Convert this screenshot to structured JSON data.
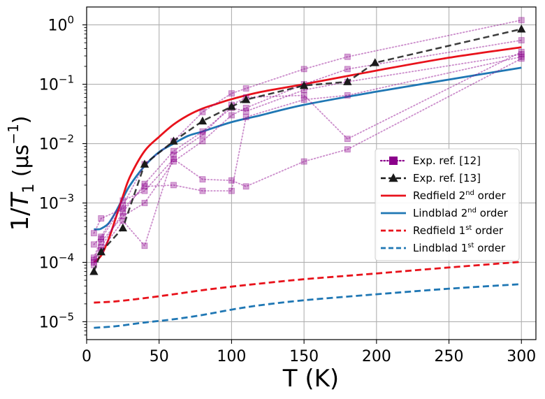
{
  "chart_data": {
    "type": "line",
    "title": "",
    "xlabel": "T (K)",
    "ylabel": "1/T1 (μs⁻¹)",
    "ylabel_parts": {
      "prefix": "1/",
      "main": "T",
      "sub": "1",
      "unit_open": " (μs",
      "unit_sup": "−1",
      "unit_close": ")"
    },
    "xscale": "linear",
    "yscale": "log",
    "xlim": [
      0,
      310
    ],
    "ylim": [
      5e-06,
      2.0
    ],
    "grid": true,
    "legend_position": "center-right",
    "xticks": [
      {
        "value": 0,
        "label": "0"
      },
      {
        "value": 50,
        "label": "50"
      },
      {
        "value": 100,
        "label": "100"
      },
      {
        "value": 150,
        "label": "150"
      },
      {
        "value": 200,
        "label": "200"
      },
      {
        "value": 250,
        "label": "250"
      },
      {
        "value": 300,
        "label": "300"
      }
    ],
    "yticks": [
      {
        "value": 1e-05,
        "base": "10",
        "exp": "−5"
      },
      {
        "value": 0.0001,
        "base": "10",
        "exp": "−4"
      },
      {
        "value": 0.001,
        "base": "10",
        "exp": "−3"
      },
      {
        "value": 0.01,
        "base": "10",
        "exp": "−2"
      },
      {
        "value": 0.1,
        "base": "10",
        "exp": "−1"
      },
      {
        "value": 1,
        "base": "10",
        "exp": "0"
      }
    ],
    "colors": {
      "exp12": "#8b008b",
      "exp13": "#1a1a1a",
      "redfield": "#e8121b",
      "lindblad": "#1f77b4",
      "grid": "#b0b0b0"
    },
    "legend": [
      {
        "series": "exp12",
        "label": "Exp. ref. [12]"
      },
      {
        "series": "exp13",
        "label": "Exp. ref. [13]"
      },
      {
        "series": "red2",
        "label": "Redfield 2nd order",
        "label_main": "Redfield 2",
        "label_sup": "nd",
        "label_tail": " order"
      },
      {
        "series": "lin2",
        "label": "Lindblad 2nd order",
        "label_main": "Lindblad 2",
        "label_sup": "nd",
        "label_tail": " order"
      },
      {
        "series": "red1",
        "label": "Redfield 1st order",
        "label_main": "Redfield 1",
        "label_sup": "st",
        "label_tail": " order"
      },
      {
        "series": "lin1",
        "label": "Lindblad 1st order",
        "label_main": "Lindblad 1",
        "label_sup": "st",
        "label_tail": " order"
      }
    ],
    "exp12_series": [
      {
        "name": "exp12-a",
        "x": [
          5,
          10,
          25,
          40,
          60,
          80,
          100,
          110,
          150,
          180,
          300
        ],
        "y": [
          0.0001,
          0.00018,
          0.0007,
          0.0021,
          0.0075,
          0.016,
          0.04,
          0.035,
          0.08,
          0.11,
          0.32
        ]
      },
      {
        "name": "exp12-b",
        "x": [
          5,
          10,
          25,
          40,
          60,
          80,
          100,
          110,
          150,
          180,
          300
        ],
        "y": [
          0.00012,
          0.00025,
          0.0009,
          0.0045,
          0.011,
          0.034,
          0.07,
          0.085,
          0.18,
          0.29,
          1.2
        ]
      },
      {
        "name": "exp12-c",
        "x": [
          5,
          10,
          25,
          40,
          60,
          80,
          100,
          110,
          150,
          180,
          300
        ],
        "y": [
          0.0002,
          0.00027,
          0.0011,
          0.0016,
          0.0055,
          0.0025,
          0.0024,
          0.0019,
          0.005,
          0.008,
          0.27
        ]
      },
      {
        "name": "exp12-d",
        "x": [
          5,
          10,
          25,
          40,
          60,
          80,
          100,
          110,
          150,
          180,
          300
        ],
        "y": [
          0.00031,
          0.00055,
          0.0008,
          0.0019,
          0.002,
          0.0016,
          0.0016,
          0.028,
          0.055,
          0.065,
          0.29
        ]
      },
      {
        "name": "exp12-e",
        "x": [
          5,
          10,
          25,
          40,
          60,
          80,
          100,
          110,
          150,
          180,
          300
        ],
        "y": [
          0.00011,
          0.00022,
          0.0006,
          0.001,
          0.005,
          0.011,
          0.03,
          0.04,
          0.1,
          0.18,
          0.55
        ]
      },
      {
        "name": "exp12-f",
        "x": [
          5,
          10,
          25,
          40,
          60,
          80,
          100,
          110,
          150,
          180,
          300
        ],
        "y": [
          9e-05,
          0.00016,
          0.0005,
          0.00019,
          0.0065,
          0.014,
          0.045,
          0.06,
          0.065,
          0.012,
          0.35
        ]
      }
    ],
    "exp13": {
      "name": "Exp. ref. [13]",
      "x": [
        5,
        10,
        25,
        40,
        60,
        80,
        100,
        110,
        150,
        180,
        199,
        300
      ],
      "y": [
        7e-05,
        0.00015,
        0.00038,
        0.0045,
        0.011,
        0.024,
        0.042,
        0.055,
        0.095,
        0.11,
        0.23,
        0.85
      ]
    },
    "red2": {
      "name": "Redfield 2nd order",
      "x": [
        5,
        10,
        15,
        20,
        25,
        30,
        40,
        50,
        60,
        70,
        80,
        90,
        100,
        120,
        150,
        200,
        250,
        300
      ],
      "y": [
        0.0001,
        0.00013,
        0.00024,
        0.00055,
        0.0013,
        0.0028,
        0.0075,
        0.013,
        0.021,
        0.03,
        0.039,
        0.047,
        0.056,
        0.074,
        0.1,
        0.17,
        0.28,
        0.42
      ]
    },
    "lin2": {
      "name": "Lindblad 2nd order",
      "x": [
        5,
        8,
        10,
        15,
        20,
        25,
        30,
        40,
        50,
        60,
        70,
        80,
        100,
        120,
        150,
        200,
        250,
        300
      ],
      "y": [
        0.00036,
        0.00036,
        0.00037,
        0.00045,
        0.0007,
        0.0012,
        0.002,
        0.0042,
        0.0072,
        0.01,
        0.0135,
        0.016,
        0.023,
        0.03,
        0.045,
        0.075,
        0.12,
        0.19
      ]
    },
    "red1": {
      "name": "Redfield 1st order",
      "x": [
        5,
        20,
        40,
        60,
        80,
        100,
        120,
        150,
        200,
        250,
        300
      ],
      "y": [
        2.1e-05,
        2.2e-05,
        2.5e-05,
        2.9e-05,
        3.4e-05,
        3.9e-05,
        4.4e-05,
        5.2e-05,
        6.5e-05,
        8.2e-05,
        0.000102
      ]
    },
    "lin1": {
      "name": "Lindblad 1st order",
      "x": [
        5,
        20,
        40,
        60,
        80,
        100,
        120,
        150,
        200,
        250,
        300
      ],
      "y": [
        7.9e-06,
        8.4e-06,
        9.7e-06,
        1.1e-05,
        1.3e-05,
        1.6e-05,
        1.9e-05,
        2.3e-05,
        2.9e-05,
        3.6e-05,
        4.3e-05
      ]
    }
  }
}
